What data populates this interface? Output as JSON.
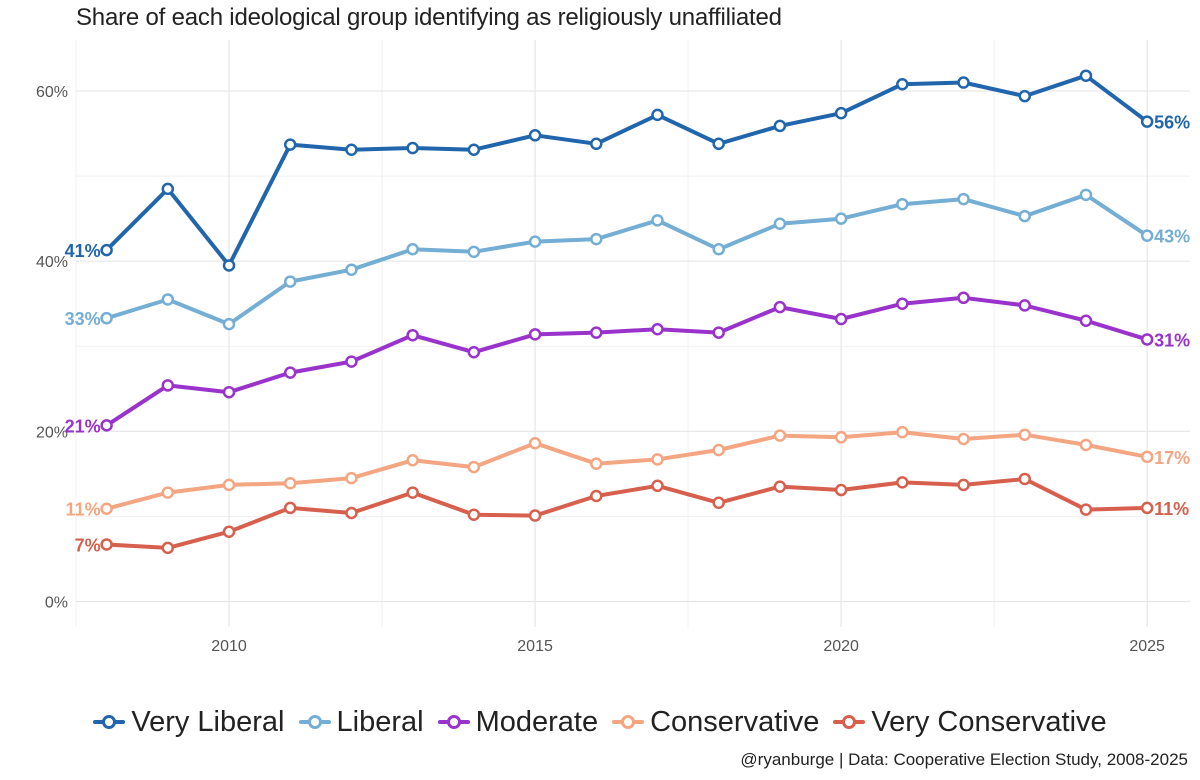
{
  "chart_data": {
    "type": "line",
    "title": "Share of each ideological group identifying as religiously unaffiliated",
    "x": [
      2008,
      2009,
      2010,
      2011,
      2012,
      2013,
      2014,
      2015,
      2016,
      2017,
      2018,
      2019,
      2020,
      2021,
      2022,
      2023,
      2024,
      2025
    ],
    "xlim": [
      2007.5,
      2025.7
    ],
    "ylim": [
      -0.03,
      0.66
    ],
    "x_ticks": [
      2010,
      2015,
      2020,
      2025
    ],
    "y_ticks": [
      0,
      0.2,
      0.4,
      0.6
    ],
    "y_tick_labels": [
      "0%",
      "20%",
      "40%",
      "60%"
    ],
    "grid": true,
    "legend_position": "bottom",
    "series": [
      {
        "name": "Very Liberal",
        "color": "#2166ac",
        "values": [
          0.413,
          0.485,
          0.395,
          0.537,
          0.531,
          0.533,
          0.531,
          0.548,
          0.538,
          0.572,
          0.538,
          0.559,
          0.574,
          0.608,
          0.61,
          0.594,
          0.618,
          0.564
        ],
        "start_label": "41%",
        "end_label": "56%"
      },
      {
        "name": "Liberal",
        "color": "#74aed4",
        "values": [
          0.333,
          0.355,
          0.326,
          0.376,
          0.39,
          0.414,
          0.411,
          0.423,
          0.426,
          0.448,
          0.414,
          0.444,
          0.45,
          0.467,
          0.473,
          0.453,
          0.478,
          0.43
        ],
        "start_label": "33%",
        "end_label": "43%"
      },
      {
        "name": "Moderate",
        "color": "#9933cc",
        "values": [
          0.207,
          0.254,
          0.246,
          0.269,
          0.282,
          0.313,
          0.293,
          0.314,
          0.316,
          0.32,
          0.316,
          0.346,
          0.332,
          0.35,
          0.357,
          0.348,
          0.33,
          0.308
        ],
        "start_label": "21%",
        "end_label": "31%"
      },
      {
        "name": "Conservative",
        "color": "#f4a582",
        "values": [
          0.109,
          0.128,
          0.137,
          0.139,
          0.145,
          0.166,
          0.158,
          0.186,
          0.162,
          0.167,
          0.178,
          0.195,
          0.193,
          0.199,
          0.191,
          0.196,
          0.184,
          0.17
        ],
        "start_label": "11%",
        "end_label": "17%"
      },
      {
        "name": "Very Conservative",
        "color": "#d6604d",
        "values": [
          0.067,
          0.063,
          0.082,
          0.11,
          0.104,
          0.128,
          0.102,
          0.101,
          0.124,
          0.136,
          0.116,
          0.135,
          0.131,
          0.14,
          0.137,
          0.144,
          0.108,
          0.11
        ],
        "start_label": "7%",
        "end_label": "11%"
      }
    ],
    "caption": "@ryanburge | Data: Cooperative Election Study, 2008-2025"
  }
}
